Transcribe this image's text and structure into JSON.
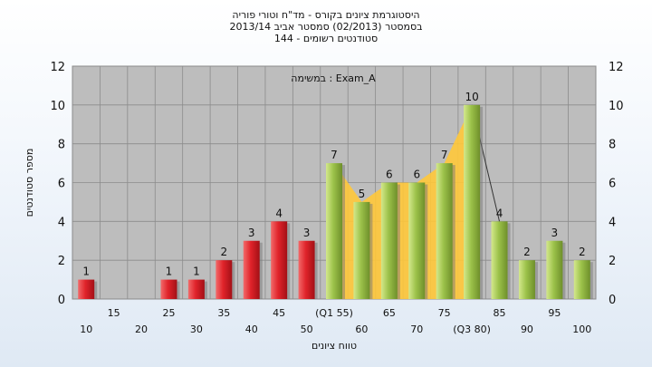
{
  "header": {
    "title_line1": "היסטוגרמת ציונים בקורס - מד\"ח וטורי פוריה",
    "title_line2": "בסמסטר  (02/2013)  סמסטר אביב 2013/14",
    "title_line3": "סטודנטים רשומים - 144"
  },
  "chart_data": {
    "type": "bar",
    "title": "היסטוגרמת ציונים בקורס - מד\"ח וטורי פוריה",
    "subtitle": "בסמסטר  (02/2013)  סמסטר אביב 2013/14 | סטודנטים רשומים - 144",
    "exam_label": "במשימה : Exam_A",
    "xlabel": "טווח ציונים",
    "ylabel": "מספר סטודנטים",
    "ylim": [
      0,
      12
    ],
    "yticks": [
      0,
      2,
      4,
      6,
      8,
      10,
      12
    ],
    "grid": true,
    "categories": [
      "10",
      "15",
      "20",
      "25",
      "30",
      "35",
      "40",
      "45",
      "50",
      "(Q1 55)",
      "60",
      "65",
      "70",
      "75",
      "(Q3 80)",
      "85",
      "90",
      "95",
      "100"
    ],
    "values": [
      1,
      0,
      0,
      1,
      1,
      2,
      3,
      4,
      3,
      7,
      5,
      6,
      6,
      7,
      10,
      4,
      2,
      3,
      2
    ],
    "bar_group": [
      "red",
      "red",
      "red",
      "red",
      "red",
      "red",
      "red",
      "red",
      "red",
      "green",
      "green",
      "green",
      "green",
      "green",
      "green",
      "green",
      "green",
      "green",
      "green"
    ],
    "interquartile_highlight": {
      "from": "(Q1 55)",
      "to": "(Q3 80)"
    },
    "colors": {
      "red_bar": "#e0232a",
      "green_bar": "#9cc24a",
      "iqr_fill": "#ffc83a",
      "plot_bg": "#bdbdbd"
    }
  }
}
